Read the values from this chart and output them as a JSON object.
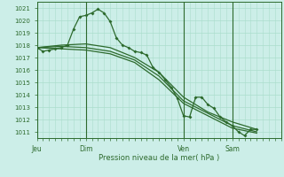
{
  "xlabel": "Pression niveau de la mer( hPa )",
  "ylim": [
    1010.5,
    1021.5
  ],
  "yticks": [
    1011,
    1012,
    1013,
    1014,
    1015,
    1016,
    1017,
    1018,
    1019,
    1020,
    1021
  ],
  "bg_color": "#cceee8",
  "grid_color": "#aaddcc",
  "line_color": "#2d6a2d",
  "xtick_labels": [
    "Jeu",
    "Dim",
    "Ven",
    "Sam"
  ],
  "xtick_positions": [
    0,
    16,
    48,
    64
  ],
  "vline_positions": [
    0,
    16,
    48,
    64
  ],
  "xlim": [
    0,
    80
  ],
  "series1": {
    "x": [
      0,
      2,
      4,
      6,
      8,
      10,
      12,
      14,
      16,
      18,
      20,
      22,
      24,
      26,
      28,
      30,
      32,
      34,
      36,
      38,
      40,
      42,
      44,
      46,
      48,
      50,
      52,
      54,
      56,
      58,
      60,
      62,
      64,
      66,
      68,
      70,
      72
    ],
    "y": [
      1017.8,
      1017.5,
      1017.6,
      1017.7,
      1017.8,
      1018.0,
      1019.3,
      1020.3,
      1020.4,
      1020.6,
      1020.9,
      1020.6,
      1019.9,
      1018.6,
      1018.0,
      1017.8,
      1017.5,
      1017.4,
      1017.2,
      1016.2,
      1015.8,
      1015.2,
      1014.6,
      1013.7,
      1012.3,
      1012.2,
      1013.8,
      1013.8,
      1013.2,
      1012.9,
      1012.2,
      1011.8,
      1011.5,
      1011.0,
      1010.7,
      1011.2,
      1011.2
    ]
  },
  "series2": {
    "x": [
      0,
      8,
      16,
      24,
      32,
      40,
      48,
      56,
      64,
      72
    ],
    "y": [
      1017.8,
      1017.9,
      1017.8,
      1017.5,
      1016.8,
      1015.5,
      1013.5,
      1012.5,
      1011.5,
      1011.0
    ]
  },
  "series3": {
    "x": [
      0,
      8,
      16,
      24,
      32,
      40,
      48,
      56,
      64,
      72
    ],
    "y": [
      1017.8,
      1017.7,
      1017.6,
      1017.3,
      1016.6,
      1015.2,
      1013.3,
      1012.3,
      1011.3,
      1010.9
    ]
  },
  "series4": {
    "x": [
      0,
      8,
      16,
      24,
      32,
      40,
      48,
      56,
      64,
      72
    ],
    "y": [
      1017.8,
      1018.0,
      1018.1,
      1017.8,
      1017.0,
      1015.8,
      1013.8,
      1012.6,
      1011.8,
      1011.2
    ]
  }
}
